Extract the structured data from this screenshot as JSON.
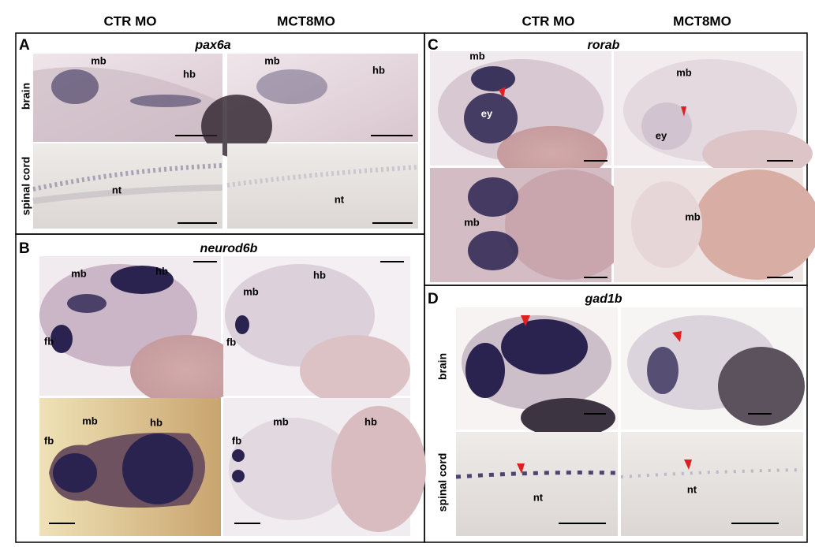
{
  "column_headers": [
    "CTR MO",
    "MCT8MO",
    "CTR MO",
    "MCT8MO"
  ],
  "panels": [
    {
      "letter": "A",
      "gene": "pax6a",
      "row_labels": [
        "brain",
        "spinal cord"
      ],
      "images": [
        {
          "labels": [
            "mb",
            "hb"
          ]
        },
        {
          "labels": [
            "mb",
            "hb"
          ]
        },
        {
          "labels": [
            "nt"
          ]
        },
        {
          "labels": [
            "nt"
          ]
        }
      ]
    },
    {
      "letter": "B",
      "gene": "neurod6b",
      "images": [
        {
          "labels": [
            "mb",
            "hb",
            "fb"
          ]
        },
        {
          "labels": [
            "hb",
            "mb",
            "fb"
          ]
        },
        {
          "labels": [
            "fb",
            "mb",
            "hb"
          ]
        },
        {
          "labels": [
            "fb",
            "mb",
            "hb"
          ]
        }
      ]
    },
    {
      "letter": "C",
      "gene": "rorab",
      "images": [
        {
          "labels": [
            "mb",
            "ey"
          ]
        },
        {
          "labels": [
            "mb",
            "ey"
          ]
        },
        {
          "labels": [
            "mb"
          ]
        },
        {
          "labels": [
            "mb"
          ]
        }
      ]
    },
    {
      "letter": "D",
      "gene": "gad1b",
      "row_labels": [
        "brain",
        "spinal cord"
      ],
      "images": [
        {
          "labels": [
            "nt"
          ]
        },
        {
          "labels": [
            "nt"
          ]
        }
      ]
    }
  ]
}
